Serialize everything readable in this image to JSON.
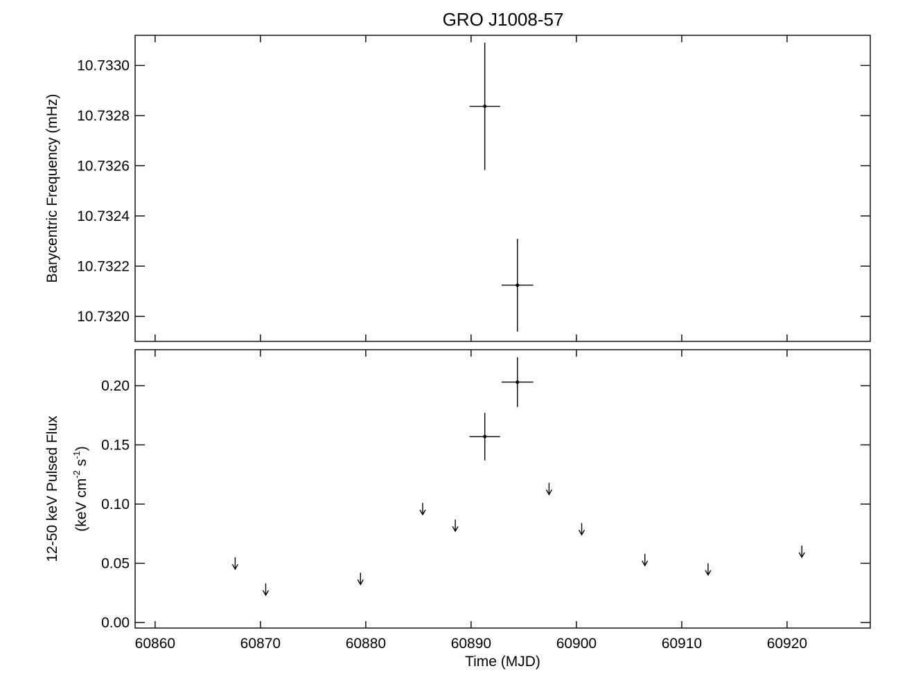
{
  "chart_data": [
    {
      "type": "scatter",
      "title": "GRO J1008-57",
      "ylabel": "Barycentric Frequency (mHz)",
      "xlim": [
        60858.1,
        60927.9
      ],
      "xticks": [
        60860,
        60870,
        60880,
        60890,
        60900,
        60910,
        60920
      ],
      "ylim": [
        10.7319,
        10.73312
      ],
      "yticks": [
        {
          "value": 10.732,
          "label": "10.7320"
        },
        {
          "value": 10.7322,
          "label": "10.7322"
        },
        {
          "value": 10.7324,
          "label": "10.7324"
        },
        {
          "value": 10.7326,
          "label": "10.7326"
        },
        {
          "value": 10.7328,
          "label": "10.7328"
        },
        {
          "value": 10.733,
          "label": "10.7330"
        }
      ],
      "series": [
        {
          "color": "#000000",
          "x": [
            60891.3,
            60894.4
          ],
          "values": [
            10.732837,
            10.732124
          ],
          "xerr": [
            1.45,
            1.5
          ],
          "yerr": [
            0.000254,
            0.000185
          ]
        }
      ]
    },
    {
      "type": "scatter",
      "xlabel": "Time (MJD)",
      "ylabel": [
        "12-50 keV Pulsed Flux",
        [
          "(keV cm",
          "-2",
          " s",
          "-1",
          ")"
        ]
      ],
      "xlim": [
        60858.1,
        60927.9
      ],
      "xticks": [
        60860,
        60870,
        60880,
        60890,
        60900,
        60910,
        60920
      ],
      "ylim": [
        -0.0047,
        0.2304
      ],
      "yticks": [
        {
          "value": 0,
          "label": "0.00"
        },
        {
          "value": 0.05,
          "label": "0.05"
        },
        {
          "value": 0.1,
          "label": "0.10"
        },
        0.15,
        {
          "value": 0.2,
          "label": "0.20"
        }
      ],
      "series": [
        {
          "color": "#000000",
          "x": [
            60891.3,
            60894.4
          ],
          "values": [
            0.157,
            0.203
          ],
          "xerr": [
            1.45,
            1.5
          ],
          "yerr": [
            0.02,
            0.021
          ]
        },
        {
          "color": "#000000",
          "upper_limit": true,
          "x": [
            60867.6,
            60870.5,
            60879.5,
            60885.4,
            60888.5,
            60897.4,
            60900.5,
            60906.5,
            60912.5,
            60921.4
          ],
          "values": [
            0.055,
            0.033,
            0.042,
            0.101,
            0.087,
            0.118,
            0.084,
            0.058,
            0.05,
            0.065
          ]
        }
      ]
    }
  ]
}
